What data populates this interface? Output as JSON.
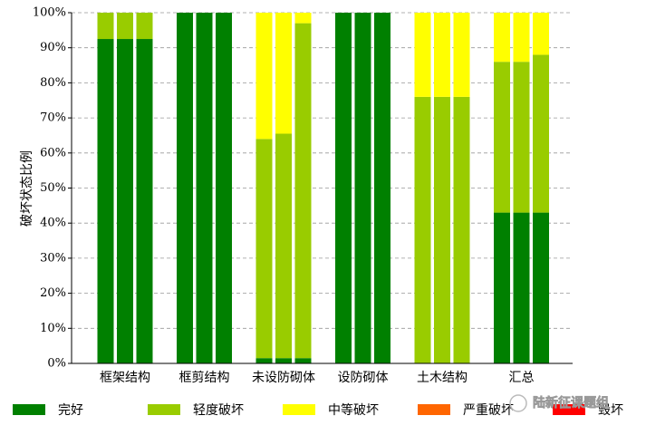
{
  "chart_data": {
    "type": "stacked_bar",
    "y_label": "破坏状态比例",
    "categories": [
      null,
      "框架结构",
      null,
      null,
      "框剪结构",
      null,
      null,
      "未设防砌体",
      null,
      null,
      "设防砌体",
      null,
      null,
      "土木结构",
      null,
      null,
      "汇总",
      null
    ],
    "series": [
      {
        "name": "完好",
        "color": "#008000",
        "values": [
          92.5,
          92.5,
          92.5,
          100,
          100,
          100,
          1.5,
          1.5,
          1.5,
          100,
          100,
          100,
          0,
          0,
          0,
          43,
          43,
          43
        ]
      },
      {
        "name": "轻度破坏",
        "color": "#99cc00",
        "values": [
          7.5,
          7.5,
          7.5,
          0,
          0,
          0,
          62.5,
          64,
          95.5,
          0,
          0,
          0,
          76,
          76,
          76,
          43,
          43,
          45
        ]
      },
      {
        "name": "中等破坏",
        "color": "#ffff00",
        "values": [
          0,
          0,
          0,
          0,
          0,
          0,
          36,
          34.5,
          3,
          0,
          0,
          0,
          24,
          24,
          24,
          14,
          14,
          12
        ]
      },
      {
        "name": "严重破坏",
        "color": "#ff6600",
        "values": [
          0,
          0,
          0,
          0,
          0,
          0,
          0,
          0,
          0,
          0,
          0,
          0,
          0,
          0,
          0,
          0,
          0,
          0
        ]
      },
      {
        "name": "毁坏",
        "color": "#ff0000",
        "values": [
          0,
          0,
          0,
          0,
          0,
          0,
          0,
          0,
          0,
          0,
          0,
          0,
          0,
          0,
          0,
          0,
          0,
          0
        ]
      }
    ],
    "ylim": [
      0,
      100
    ],
    "yticks": [
      {
        "value": 0,
        "label": "0%"
      },
      {
        "value": 10,
        "label": "10%"
      },
      {
        "value": 20,
        "label": "20%"
      },
      {
        "value": 30,
        "label": "30%"
      },
      {
        "value": 40,
        "label": "40%"
      },
      {
        "value": 50,
        "label": "50%"
      },
      {
        "value": 60,
        "label": "60%"
      },
      {
        "value": 70,
        "label": "70%"
      },
      {
        "value": 80,
        "label": "80%"
      },
      {
        "value": 90,
        "label": "90%"
      },
      {
        "value": 100,
        "label": "100%"
      }
    ],
    "grid": true,
    "watermark": "陆新征课题组"
  }
}
